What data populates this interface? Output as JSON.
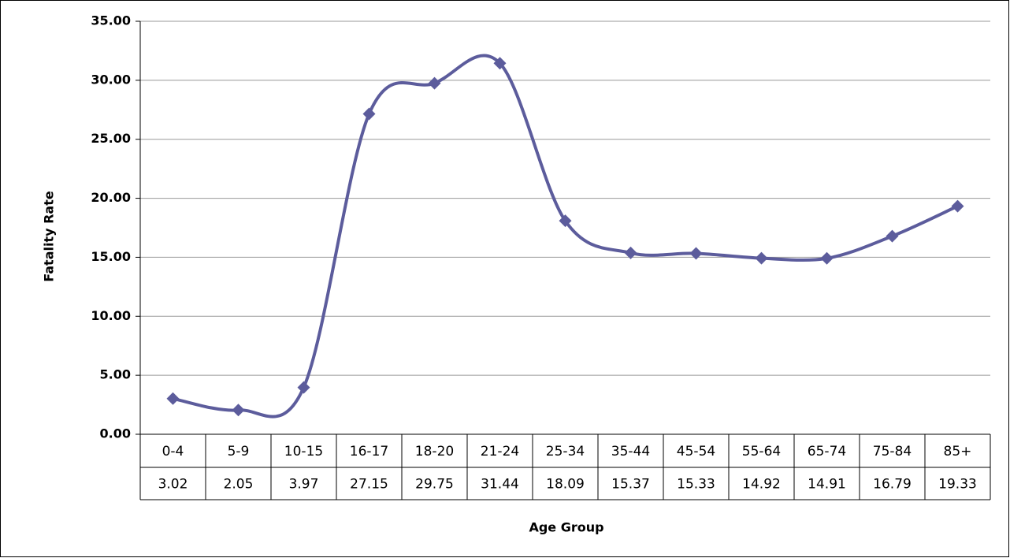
{
  "chart_data": {
    "type": "line",
    "x_label": "Age Group",
    "y_label": "Fatality Rate",
    "categories": [
      "0-4",
      "5-9",
      "10-15",
      "16-17",
      "18-20",
      "21-24",
      "25-34",
      "35-44",
      "45-54",
      "55-64",
      "65-74",
      "75-84",
      "85+"
    ],
    "values": [
      3.02,
      2.05,
      3.97,
      27.15,
      29.75,
      31.44,
      18.09,
      15.37,
      15.33,
      14.92,
      14.91,
      16.79,
      19.33
    ],
    "color": "#5c5c9c",
    "ylim": [
      0,
      35
    ],
    "yticks": [
      {
        "value": 0,
        "label": "0.00"
      },
      {
        "value": 5,
        "label": "5.00"
      },
      {
        "value": 10,
        "label": "10.00"
      },
      {
        "value": 15,
        "label": "15.00"
      },
      {
        "value": 20,
        "label": "20.00"
      },
      {
        "value": 25,
        "label": "25.00"
      },
      {
        "value": 30,
        "label": "30.00"
      },
      {
        "value": 35,
        "label": "35.00"
      }
    ],
    "grid": true,
    "smooth": true,
    "data_table": true
  }
}
